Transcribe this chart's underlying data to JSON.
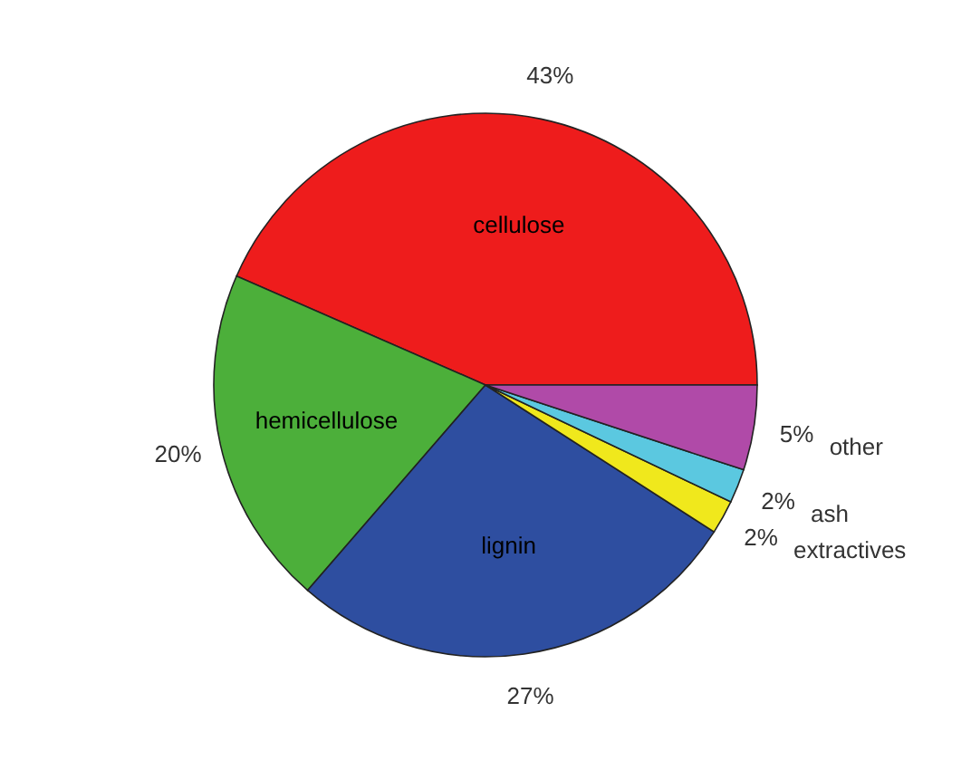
{
  "chart_data": {
    "type": "pie",
    "categories": [
      "cellulose",
      "hemicellulose",
      "lignin",
      "extractives",
      "ash",
      "other"
    ],
    "values": [
      43,
      20,
      27,
      2,
      2,
      5
    ],
    "colors": [
      "#ee1c1c",
      "#4caf3a",
      "#2e4ea0",
      "#f0e81c",
      "#5bc8e0",
      "#b04aa8"
    ],
    "value_labels": [
      "43%",
      "20%",
      "27%",
      "2%",
      "2%",
      "5%"
    ],
    "legend": false
  }
}
